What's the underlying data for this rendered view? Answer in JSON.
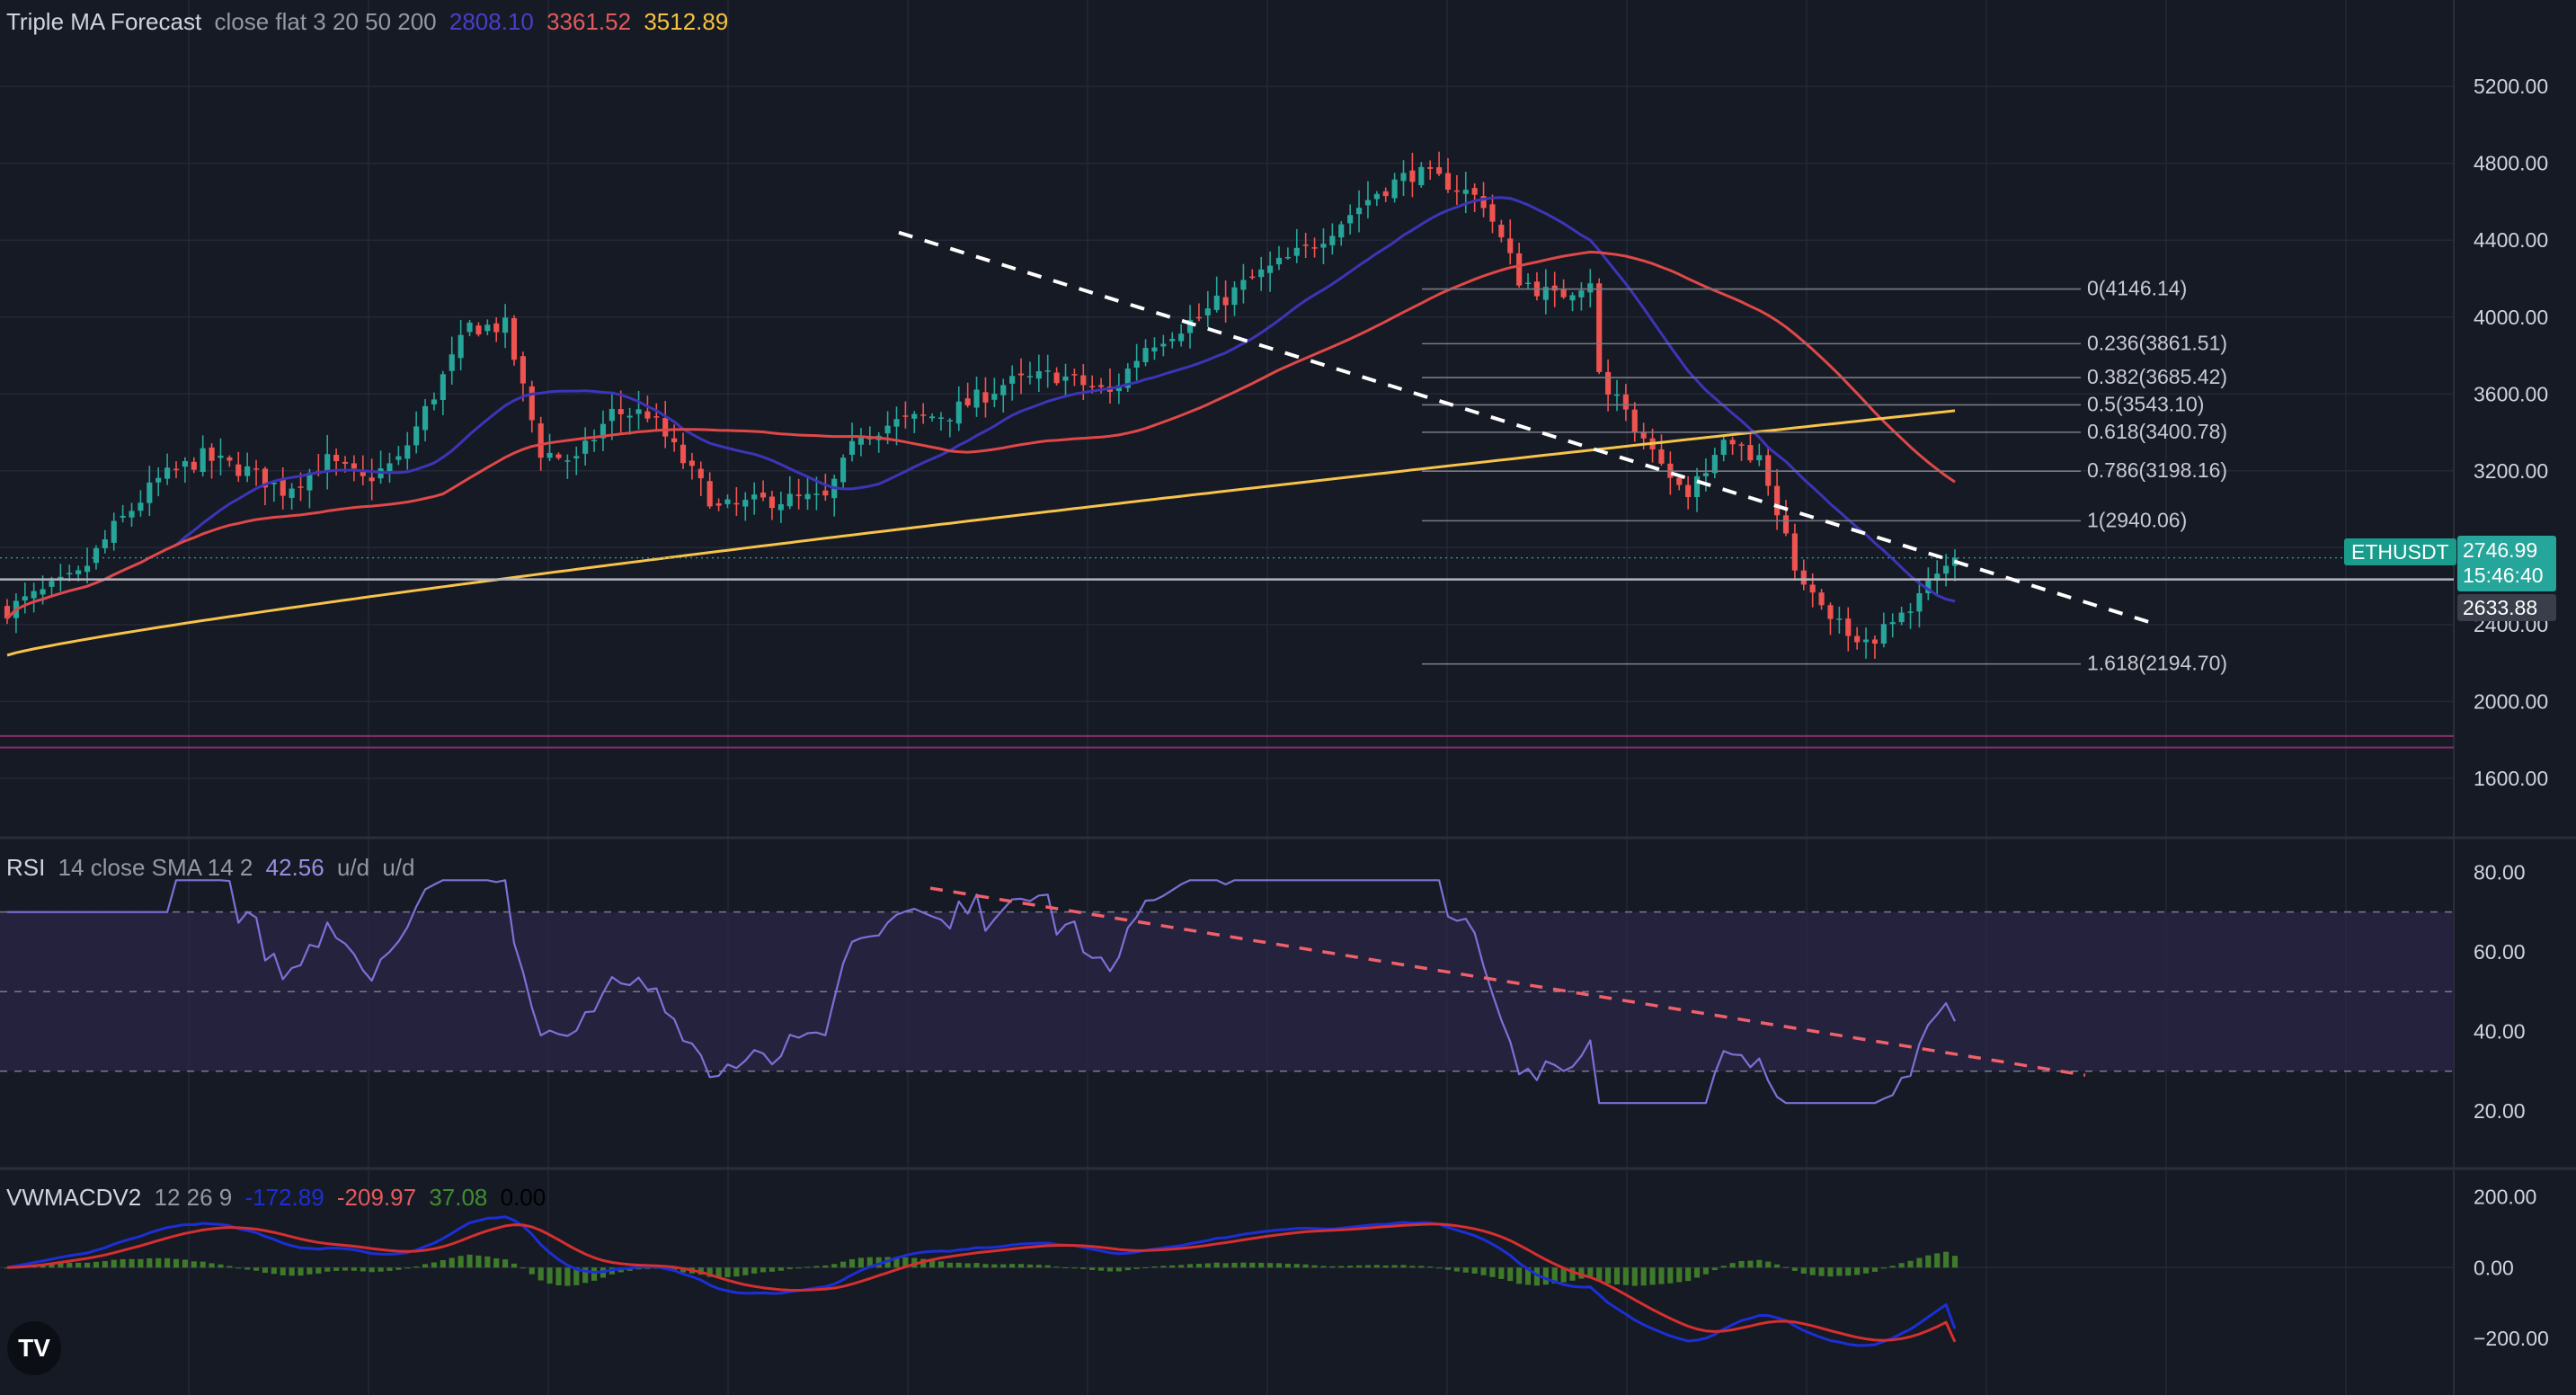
{
  "legend_main": {
    "name": "Triple MA Forecast",
    "params": "close flat 3 20 50 200",
    "values": [
      {
        "text": "2808.10",
        "color": "#4a3ec9"
      },
      {
        "text": "3361.52",
        "color": "#e35b5b"
      },
      {
        "text": "3512.89",
        "color": "#f5c342"
      }
    ]
  },
  "legend_rsi": {
    "name": "RSI",
    "params": "14 close SMA 14 2",
    "values": [
      {
        "text": "42.56",
        "color": "#9b8ee0"
      },
      {
        "text": "u/d",
        "color": "#9598a1"
      },
      {
        "text": "u/d",
        "color": "#9598a1"
      }
    ]
  },
  "legend_macd": {
    "name": "VWMACDV2",
    "params": "12 26 9",
    "values": [
      {
        "text": "-172.89",
        "color": "#1c2fd6"
      },
      {
        "text": "-209.97",
        "color": "#e35b5b"
      },
      {
        "text": "37.08",
        "color": "#3f8f2e"
      },
      {
        "text": "0.00",
        "color": "#000000"
      }
    ]
  },
  "price_tags": {
    "symbol": "ETHUSDT",
    "last_price": "2746.99",
    "countdown": "15:46:40",
    "lower_price": "2633.88"
  },
  "logo": "TV",
  "colors": {
    "background": "#161a25",
    "grid": "#242836",
    "up": "#26a69a",
    "down": "#ef5350",
    "ma20": "#3d35b8",
    "ma50": "#e04848",
    "ma200": "#f7c34a",
    "rsi": "#7e6fd6",
    "rsi_band": "#2a2545",
    "macd": "#1c2fd6",
    "signal": "#d62f2f",
    "hist": "#3e7a2a",
    "horizontal_line": "#8b2f6b"
  },
  "chart_data": [
    {
      "type": "candlestick",
      "title": "Triple MA Forecast close flat 3 20 50 200",
      "yticks": [
        1600,
        2000,
        2400,
        2800,
        3200,
        3600,
        4000,
        4400,
        4800,
        5200
      ],
      "ylabels": [
        "1600.00",
        "2000.00",
        "2400.00",
        "2800.00",
        "3200.00",
        "3600.00",
        "4000.00",
        "4400.00",
        "4800.00",
        "5200.00"
      ],
      "ylim": [
        1300,
        5650
      ],
      "n_bars": 220,
      "price_anchors": [
        [
          0,
          2500
        ],
        [
          5,
          2550
        ],
        [
          8,
          2750
        ],
        [
          14,
          3100
        ],
        [
          20,
          3270
        ],
        [
          28,
          3180
        ],
        [
          33,
          3150
        ],
        [
          38,
          3050
        ],
        [
          44,
          3250
        ],
        [
          50,
          3250
        ],
        [
          55,
          3320
        ],
        [
          60,
          3750
        ],
        [
          65,
          3950
        ],
        [
          70,
          3850
        ],
        [
          74,
          3500
        ],
        [
          78,
          3400
        ],
        [
          84,
          3420
        ],
        [
          88,
          3600
        ],
        [
          94,
          3500
        ],
        [
          98,
          3350
        ],
        [
          102,
          3100
        ],
        [
          106,
          3050
        ],
        [
          110,
          3050
        ],
        [
          114,
          2950
        ],
        [
          118,
          3100
        ],
        [
          122,
          3300
        ],
        [
          126,
          3500
        ],
        [
          130,
          3550
        ],
        [
          136,
          3500
        ],
        [
          142,
          3650
        ],
        [
          148,
          3900
        ],
        [
          152,
          3950
        ],
        [
          156,
          4100
        ],
        [
          160,
          4200
        ],
        [
          164,
          4150
        ],
        [
          170,
          4350
        ],
        [
          174,
          4550
        ],
        [
          178,
          4600
        ],
        [
          182,
          4500
        ],
        [
          186,
          4400
        ],
        [
          188,
          4050
        ],
        [
          192,
          4100
        ],
        [
          196,
          4200
        ],
        [
          200,
          4050
        ],
        [
          204,
          4100
        ],
        [
          208,
          4400
        ],
        [
          212,
          4600
        ],
        [
          216,
          4450
        ],
        [
          220,
          4300
        ]
      ],
      "moving_averages": [
        {
          "name": "MA 20",
          "value": 2808.1
        },
        {
          "name": "MA 50",
          "value": 3361.52
        },
        {
          "name": "MA 200",
          "value": 3512.89
        }
      ],
      "fibonacci": [
        {
          "label": "0(4146.14)",
          "value": 4146.14
        },
        {
          "label": "0.236(3861.51)",
          "value": 3861.51
        },
        {
          "label": "0.382(3685.42)",
          "value": 3685.42
        },
        {
          "label": "0.5(3543.10)",
          "value": 3543.1
        },
        {
          "label": "0.618(3400.78)",
          "value": 3400.78
        },
        {
          "label": "0.786(3198.16)",
          "value": 3198.16
        },
        {
          "label": "1(2940.06)",
          "value": 2940.06
        },
        {
          "label": "1.618(2194.70)",
          "value": 2194.7
        }
      ],
      "horizontal_levels": [
        2635,
        1820,
        1760
      ],
      "trendline": {
        "from": [
          100,
          4440
        ],
        "to": [
          240,
          2400
        ],
        "style": "dashed"
      }
    },
    {
      "type": "line",
      "title": "RSI 14 close SMA 14 2",
      "yticks": [
        20,
        40,
        60,
        80
      ],
      "ylabels": [
        "20.00",
        "40.00",
        "60.00",
        "80.00"
      ],
      "band": [
        30,
        70
      ],
      "midline": 50,
      "ylim": [
        6,
        88
      ],
      "last_value": 42.56,
      "trendline": {
        "from": [
          103,
          76
        ],
        "to": [
          232,
          29
        ],
        "style": "dashed"
      }
    },
    {
      "type": "line",
      "title": "VWMACDV2 12 26 9",
      "yticks": [
        -200,
        0,
        200
      ],
      "ylabels": [
        "−200.00",
        "0.00",
        "200.00"
      ],
      "ylim": [
        -360,
        280
      ],
      "series": [
        {
          "name": "VWMACD",
          "last": -172.89
        },
        {
          "name": "Signal",
          "last": -209.97
        },
        {
          "name": "Histogram",
          "last": 37.08
        }
      ]
    }
  ]
}
